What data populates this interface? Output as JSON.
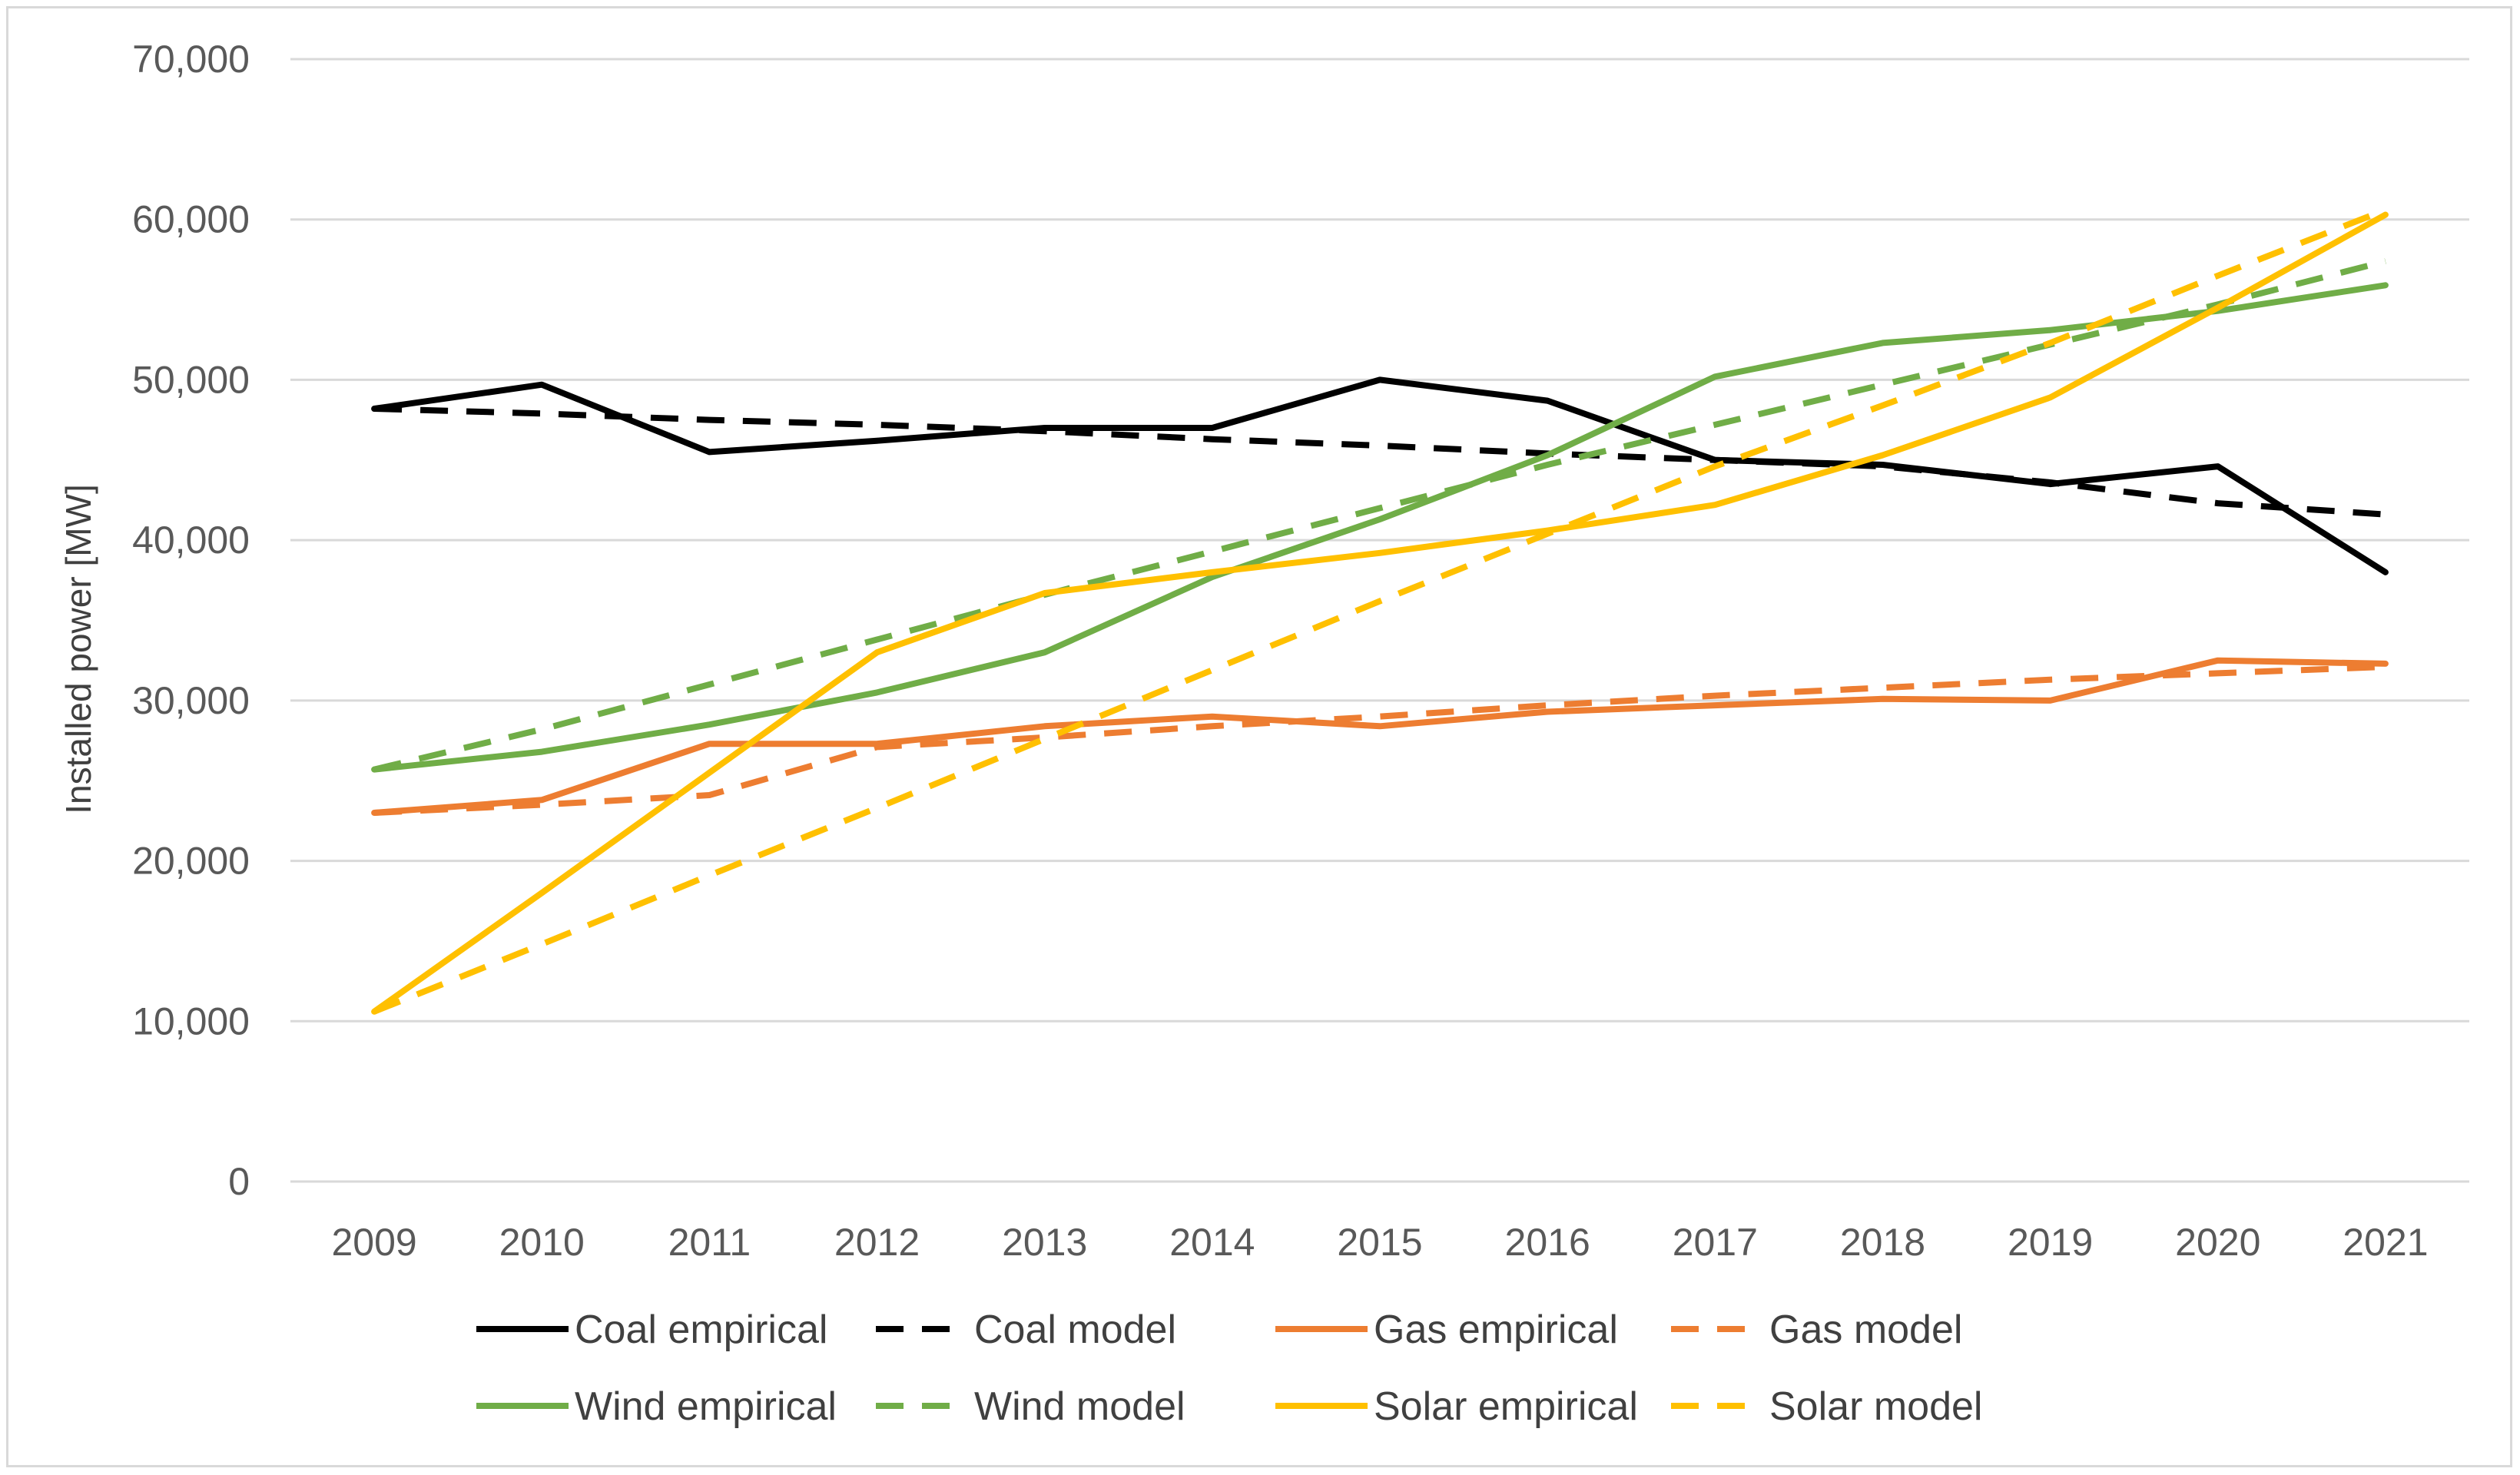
{
  "chart_data": {
    "type": "line",
    "title": "",
    "xlabel": "",
    "ylabel": "Installed power [MW]",
    "ylim": [
      0,
      70000
    ],
    "y_ticks": [
      0,
      10000,
      20000,
      30000,
      40000,
      50000,
      60000,
      70000
    ],
    "y_tick_labels": [
      "0",
      "10,000",
      "20,000",
      "30,000",
      "40,000",
      "50,000",
      "60,000",
      "70,000"
    ],
    "grid": true,
    "legend_position": "bottom",
    "categories": [
      "2009",
      "2010",
      "2011",
      "2012",
      "2013",
      "2014",
      "2015",
      "2016",
      "2017",
      "2018",
      "2019",
      "2020",
      "2021"
    ],
    "series": [
      {
        "name": "Coal empirical",
        "color": "#000000",
        "dashed": false,
        "values": [
          48200,
          49700,
          45500,
          46200,
          47000,
          47000,
          50000,
          48700,
          45000,
          44700,
          43500,
          44600,
          38000
        ]
      },
      {
        "name": "Coal model",
        "color": "#000000",
        "dashed": true,
        "values": [
          48200,
          47900,
          47500,
          47200,
          46800,
          46300,
          45900,
          45400,
          45000,
          44600,
          43600,
          42300,
          41600
        ]
      },
      {
        "name": "Gas empirical",
        "color": "#ed7d31",
        "dashed": false,
        "values": [
          23000,
          23800,
          27300,
          27300,
          28400,
          29000,
          28400,
          29300,
          29700,
          30100,
          30000,
          32500,
          32300
        ]
      },
      {
        "name": "Gas model",
        "color": "#ed7d31",
        "dashed": true,
        "values": [
          23000,
          23500,
          24100,
          27100,
          27700,
          28400,
          29000,
          29700,
          30300,
          30800,
          31300,
          31700,
          32100
        ]
      },
      {
        "name": "Wind empirical",
        "color": "#70ad47",
        "dashed": false,
        "values": [
          25700,
          26800,
          28500,
          30500,
          33000,
          37700,
          41300,
          45300,
          50200,
          52300,
          53100,
          54300,
          55900
        ]
      },
      {
        "name": "Wind model",
        "color": "#70ad47",
        "dashed": true,
        "values": [
          25700,
          28200,
          31000,
          33800,
          36600,
          39300,
          42000,
          44700,
          47200,
          49700,
          52200,
          54700,
          57400
        ]
      },
      {
        "name": "Solar empirical",
        "color": "#ffc000",
        "dashed": false,
        "values": [
          10600,
          18000,
          25500,
          33000,
          36700,
          38000,
          39200,
          40600,
          42200,
          45300,
          48900,
          54500,
          60300
        ]
      },
      {
        "name": "Solar model",
        "color": "#ffc000",
        "dashed": true,
        "values": [
          10600,
          14800,
          19100,
          23300,
          27600,
          31900,
          36200,
          40400,
          44600,
          48400,
          52300,
          56500,
          60600
        ]
      }
    ]
  }
}
